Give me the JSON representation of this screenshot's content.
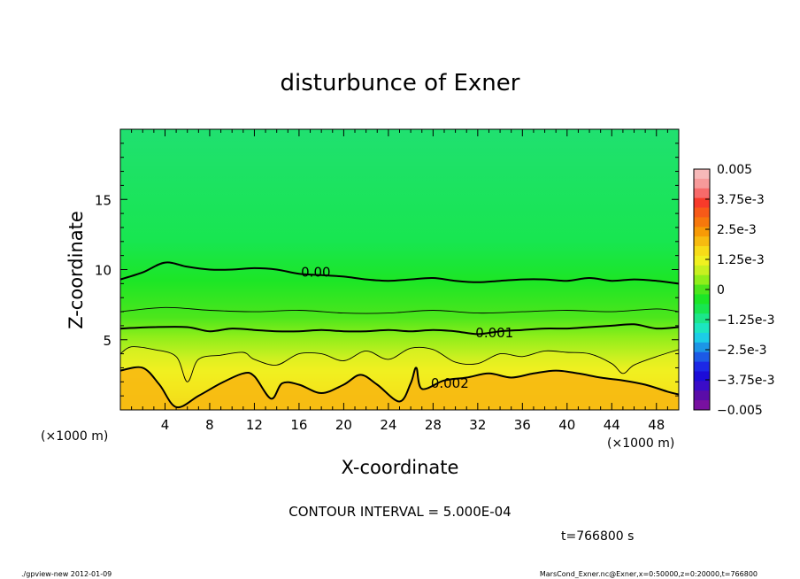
{
  "chart_data": {
    "type": "contour",
    "title": "disturbunce of Exner",
    "xlabel": "X-coordinate",
    "ylabel": "Z-coordinate",
    "x_unit_left": "(×1000 m)",
    "x_unit_right": "(×1000 m)",
    "xlim": [
      0,
      50
    ],
    "ylim": [
      0,
      20
    ],
    "x_ticks": [
      4,
      8,
      12,
      16,
      20,
      24,
      28,
      32,
      36,
      40,
      44,
      48
    ],
    "y_ticks": [
      5,
      10,
      15
    ],
    "x_tick_labels": [
      "4",
      "8",
      "12",
      "16",
      "20",
      "24",
      "28",
      "32",
      "36",
      "40",
      "44",
      "48"
    ],
    "y_tick_labels": [
      "5",
      "10",
      "15"
    ],
    "contour_interval_text": "CONTOUR INTERVAL = 5.000E-04",
    "time_text": "t=766800 s",
    "contour_labels": [
      {
        "text": "0.00",
        "x": 17.5,
        "z": 9.8
      },
      {
        "text": "0.001",
        "x": 33.5,
        "z": 5.5
      },
      {
        "text": "0.002",
        "x": 29.5,
        "z": 1.9
      }
    ],
    "contours": [
      {
        "level": 0.0,
        "bold": true,
        "points": [
          [
            0,
            9.3
          ],
          [
            2,
            9.8
          ],
          [
            4,
            10.5
          ],
          [
            6,
            10.2
          ],
          [
            8,
            10.0
          ],
          [
            10,
            10.0
          ],
          [
            12,
            10.1
          ],
          [
            14,
            10.0
          ],
          [
            16,
            9.7
          ],
          [
            18,
            9.6
          ],
          [
            20,
            9.5
          ],
          [
            22,
            9.3
          ],
          [
            24,
            9.2
          ],
          [
            26,
            9.3
          ],
          [
            28,
            9.4
          ],
          [
            30,
            9.2
          ],
          [
            32,
            9.1
          ],
          [
            34,
            9.2
          ],
          [
            36,
            9.3
          ],
          [
            38,
            9.3
          ],
          [
            40,
            9.2
          ],
          [
            42,
            9.4
          ],
          [
            44,
            9.2
          ],
          [
            46,
            9.3
          ],
          [
            48,
            9.2
          ],
          [
            50,
            9.0
          ]
        ]
      },
      {
        "level": 0.0005,
        "bold": false,
        "points": [
          [
            0,
            7.0
          ],
          [
            4,
            7.3
          ],
          [
            8,
            7.1
          ],
          [
            12,
            7.0
          ],
          [
            16,
            7.1
          ],
          [
            20,
            6.9
          ],
          [
            24,
            6.9
          ],
          [
            28,
            7.1
          ],
          [
            32,
            6.9
          ],
          [
            36,
            7.0
          ],
          [
            40,
            7.1
          ],
          [
            44,
            7.0
          ],
          [
            48,
            7.2
          ],
          [
            50,
            7.0
          ]
        ]
      },
      {
        "level": 0.001,
        "bold": true,
        "points": [
          [
            0,
            5.8
          ],
          [
            3,
            5.9
          ],
          [
            6,
            5.9
          ],
          [
            8,
            5.6
          ],
          [
            10,
            5.8
          ],
          [
            12,
            5.7
          ],
          [
            14,
            5.6
          ],
          [
            16,
            5.6
          ],
          [
            18,
            5.7
          ],
          [
            20,
            5.6
          ],
          [
            22,
            5.6
          ],
          [
            24,
            5.7
          ],
          [
            26,
            5.6
          ],
          [
            28,
            5.7
          ],
          [
            30,
            5.6
          ],
          [
            32,
            5.4
          ],
          [
            34,
            5.6
          ],
          [
            36,
            5.7
          ],
          [
            38,
            5.8
          ],
          [
            40,
            5.8
          ],
          [
            42,
            5.9
          ],
          [
            44,
            6.0
          ],
          [
            46,
            6.1
          ],
          [
            48,
            5.8
          ],
          [
            50,
            5.9
          ]
        ]
      },
      {
        "level": 0.0015,
        "bold": false,
        "points": [
          [
            0,
            4.0
          ],
          [
            1,
            4.5
          ],
          [
            3,
            4.3
          ],
          [
            5,
            3.8
          ],
          [
            6,
            2.0
          ],
          [
            7,
            3.6
          ],
          [
            9,
            3.9
          ],
          [
            11,
            4.1
          ],
          [
            12,
            3.6
          ],
          [
            14,
            3.2
          ],
          [
            16,
            4.0
          ],
          [
            18,
            4.0
          ],
          [
            20,
            3.5
          ],
          [
            22,
            4.2
          ],
          [
            24,
            3.6
          ],
          [
            26,
            4.4
          ],
          [
            28,
            4.3
          ],
          [
            30,
            3.4
          ],
          [
            32,
            3.3
          ],
          [
            34,
            4.0
          ],
          [
            36,
            3.8
          ],
          [
            38,
            4.2
          ],
          [
            40,
            4.1
          ],
          [
            42,
            4.0
          ],
          [
            44,
            3.3
          ],
          [
            45,
            2.6
          ],
          [
            46,
            3.2
          ],
          [
            48,
            3.8
          ],
          [
            50,
            4.3
          ]
        ]
      },
      {
        "level": 0.002,
        "bold": true,
        "points": [
          [
            0,
            2.8
          ],
          [
            2,
            3.0
          ],
          [
            3.5,
            1.8
          ],
          [
            5,
            0.2
          ],
          [
            7,
            1.0
          ],
          [
            9,
            1.9
          ],
          [
            11,
            2.6
          ],
          [
            12,
            2.4
          ],
          [
            13.5,
            0.8
          ],
          [
            14.5,
            1.9
          ],
          [
            16,
            1.8
          ],
          [
            18,
            1.2
          ],
          [
            20,
            1.8
          ],
          [
            21.5,
            2.5
          ],
          [
            23,
            1.8
          ],
          [
            25,
            0.6
          ],
          [
            26,
            1.9
          ],
          [
            26.5,
            3.0
          ],
          [
            27,
            1.5
          ],
          [
            29,
            2.1
          ],
          [
            31,
            2.3
          ],
          [
            33,
            2.6
          ],
          [
            35,
            2.3
          ],
          [
            37,
            2.6
          ],
          [
            39,
            2.8
          ],
          [
            41,
            2.6
          ],
          [
            43,
            2.3
          ],
          [
            45,
            2.1
          ],
          [
            47,
            1.8
          ],
          [
            49,
            1.3
          ],
          [
            50,
            1.1
          ]
        ]
      }
    ],
    "colorbar": {
      "labels": [
        "0.005",
        "3.75e-3",
        "2.5e-3",
        "1.25e-3",
        "0",
        "−1.25e-3",
        "−2.5e-3",
        "−3.75e-3",
        "−0.005"
      ],
      "colors": [
        "#f7b9b9",
        "#f79a9a",
        "#f76a6a",
        "#f73a2a",
        "#f75a18",
        "#f7780c",
        "#f79a06",
        "#f7bb10",
        "#f7dc18",
        "#f0f020",
        "#c8f020",
        "#90ee1a",
        "#4ce61c",
        "#1ce626",
        "#18e650",
        "#1ce68a",
        "#1ce6c0",
        "#1ccde6",
        "#1c96e6",
        "#1c5ae6",
        "#1c28e6",
        "#1c0cd8",
        "#3a0cc8",
        "#5a0ca8",
        "#7810a0"
      ],
      "range": [
        -0.005,
        0.005
      ]
    },
    "footer_left": "./gpview-new   2012-01-09",
    "footer_right": "MarsCond_Exner.nc@Exner,x=0:50000,z=0:20000,t=766800"
  }
}
